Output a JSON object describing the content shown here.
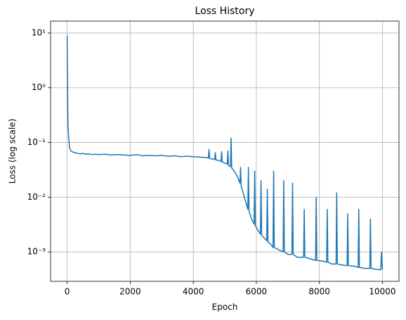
{
  "chart_data": {
    "type": "line",
    "title": "Loss History",
    "x_label": "Epoch",
    "y_label": "Loss (log scale)",
    "color": "#1f77b4",
    "log_y": true,
    "grid": true,
    "xlim": [
      -525,
      10525
    ],
    "ylim": [
      0.00029,
      16.5
    ],
    "xticks": [
      0,
      2000,
      4000,
      6000,
      8000,
      10000
    ],
    "yticks": [
      {
        "value": 0.001,
        "label": "10⁻³"
      },
      {
        "value": 0.01,
        "label": "10⁻²"
      },
      {
        "value": 0.1,
        "label": "10⁻¹"
      },
      {
        "value": 1,
        "label": "10⁰"
      },
      {
        "value": 10,
        "label": "10¹"
      }
    ],
    "x": [
      0,
      10,
      20,
      30,
      50,
      80,
      120,
      200,
      300,
      400,
      500,
      600,
      700,
      800,
      900,
      1000,
      1200,
      1400,
      1600,
      1800,
      2000,
      2200,
      2400,
      2600,
      2800,
      3000,
      3200,
      3400,
      3600,
      3800,
      4000,
      4200,
      4400,
      4480,
      4500,
      4520,
      4600,
      4680,
      4700,
      4720,
      4800,
      4880,
      4900,
      4920,
      5000,
      5080,
      5100,
      5120,
      5180,
      5200,
      5220,
      5300,
      5400,
      5480,
      5500,
      5520,
      5600,
      5700,
      5730,
      5750,
      5770,
      5850,
      5930,
      5950,
      5970,
      6050,
      6130,
      6150,
      6170,
      6250,
      6330,
      6350,
      6370,
      6450,
      6530,
      6550,
      6570,
      6700,
      6850,
      6870,
      6890,
      7000,
      7130,
      7150,
      7170,
      7300,
      7500,
      7520,
      7540,
      7700,
      7880,
      7900,
      7920,
      8100,
      8230,
      8250,
      8270,
      8400,
      8530,
      8550,
      8570,
      8700,
      8880,
      8900,
      8920,
      9100,
      9230,
      9250,
      9270,
      9450,
      9600,
      9620,
      9640,
      9800,
      9950,
      9970,
      10000
    ],
    "values": [
      9.0,
      2.0,
      0.4,
      0.2,
      0.12,
      0.08,
      0.07,
      0.066,
      0.064,
      0.062,
      0.063,
      0.061,
      0.062,
      0.06,
      0.061,
      0.06,
      0.061,
      0.059,
      0.06,
      0.059,
      0.058,
      0.06,
      0.057,
      0.058,
      0.057,
      0.058,
      0.056,
      0.057,
      0.055,
      0.056,
      0.055,
      0.054,
      0.053,
      0.052,
      0.075,
      0.051,
      0.05,
      0.049,
      0.065,
      0.048,
      0.047,
      0.045,
      0.068,
      0.044,
      0.042,
      0.04,
      0.07,
      0.038,
      0.036,
      0.12,
      0.034,
      0.03,
      0.024,
      0.018,
      0.035,
      0.016,
      0.011,
      0.007,
      0.006,
      0.035,
      0.0055,
      0.004,
      0.0032,
      0.03,
      0.003,
      0.0025,
      0.0021,
      0.02,
      0.002,
      0.0018,
      0.0016,
      0.014,
      0.0015,
      0.0014,
      0.0012,
      0.03,
      0.0012,
      0.0011,
      0.001,
      0.02,
      0.001,
      0.0009,
      0.0009,
      0.018,
      0.0009,
      0.0008,
      0.0008,
      0.006,
      0.0008,
      0.00075,
      0.0007,
      0.01,
      0.0007,
      0.00068,
      0.00065,
      0.006,
      0.00065,
      0.0006,
      0.0006,
      0.012,
      0.0006,
      0.00058,
      0.00056,
      0.005,
      0.00056,
      0.00055,
      0.00052,
      0.006,
      0.00052,
      0.0005,
      0.0005,
      0.004,
      0.0005,
      0.00048,
      0.00047,
      0.001,
      0.00048
    ]
  }
}
